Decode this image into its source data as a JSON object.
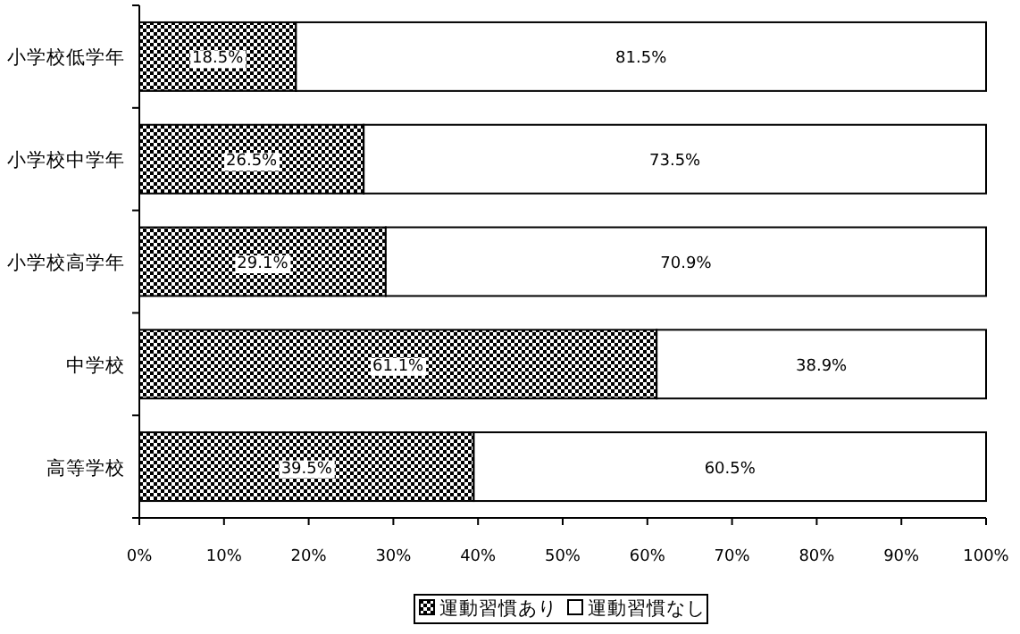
{
  "chart_data": {
    "type": "bar",
    "orientation": "horizontal",
    "stacked": true,
    "categories": [
      "小学校低学年",
      "小学校中学年",
      "小学校高学年",
      "中学校",
      "高等学校"
    ],
    "series": [
      {
        "name": "運動習慣あり",
        "color": "#000000",
        "values": [
          18.5,
          26.5,
          29.1,
          61.1,
          39.5
        ],
        "value_labels": [
          "18.5%",
          "26.5%",
          "29.1%",
          "61.1%",
          "39.5%"
        ]
      },
      {
        "name": "運動習慣なし",
        "color": "#ffffff",
        "values": [
          81.5,
          73.5,
          70.9,
          38.9,
          60.5
        ],
        "value_labels": [
          "81.5%",
          "73.5%",
          "70.9%",
          "38.9%",
          "60.5%"
        ]
      }
    ],
    "xlim": [
      0,
      100
    ],
    "xticks": [
      {
        "value": 0,
        "label": "0%"
      },
      {
        "value": 10,
        "label": "10%"
      },
      {
        "value": 20,
        "label": "20%"
      },
      {
        "value": 30,
        "label": "30%"
      },
      {
        "value": 40,
        "label": "40%"
      },
      {
        "value": 50,
        "label": "50%"
      },
      {
        "value": 60,
        "label": "60%"
      },
      {
        "value": 70,
        "label": "70%"
      },
      {
        "value": 80,
        "label": "80%"
      },
      {
        "value": 90,
        "label": "90%"
      },
      {
        "value": 100,
        "label": "100%"
      }
    ],
    "grid": false,
    "legend": "bottom"
  }
}
